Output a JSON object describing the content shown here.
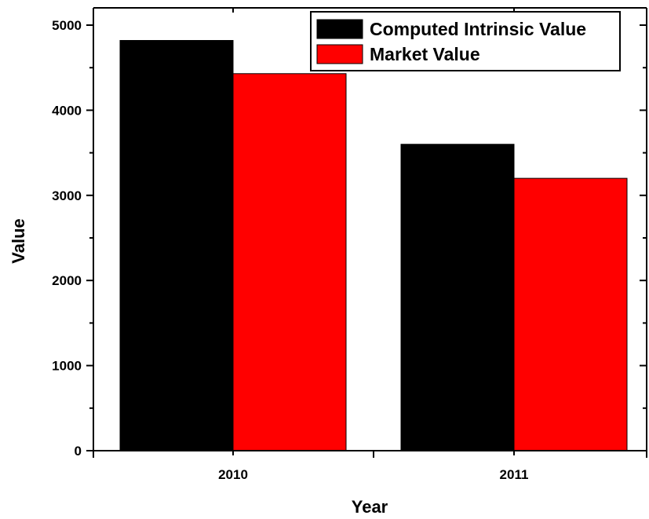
{
  "chart_data": {
    "type": "bar",
    "title": "",
    "xlabel": "Year",
    "ylabel": "Value",
    "categories": [
      "2010",
      "2011"
    ],
    "series": [
      {
        "name": "Computed Intrinsic Value",
        "color": "#000000",
        "values": [
          4820,
          3600
        ]
      },
      {
        "name": "Market Value",
        "color": "#ff0000",
        "values": [
          4430,
          3200
        ]
      }
    ],
    "ylim": [
      0,
      5000
    ],
    "yticks": [
      "0",
      "1000",
      "2000",
      "3000",
      "4000",
      "5000"
    ],
    "grid": false,
    "legend_position": "top-right"
  }
}
